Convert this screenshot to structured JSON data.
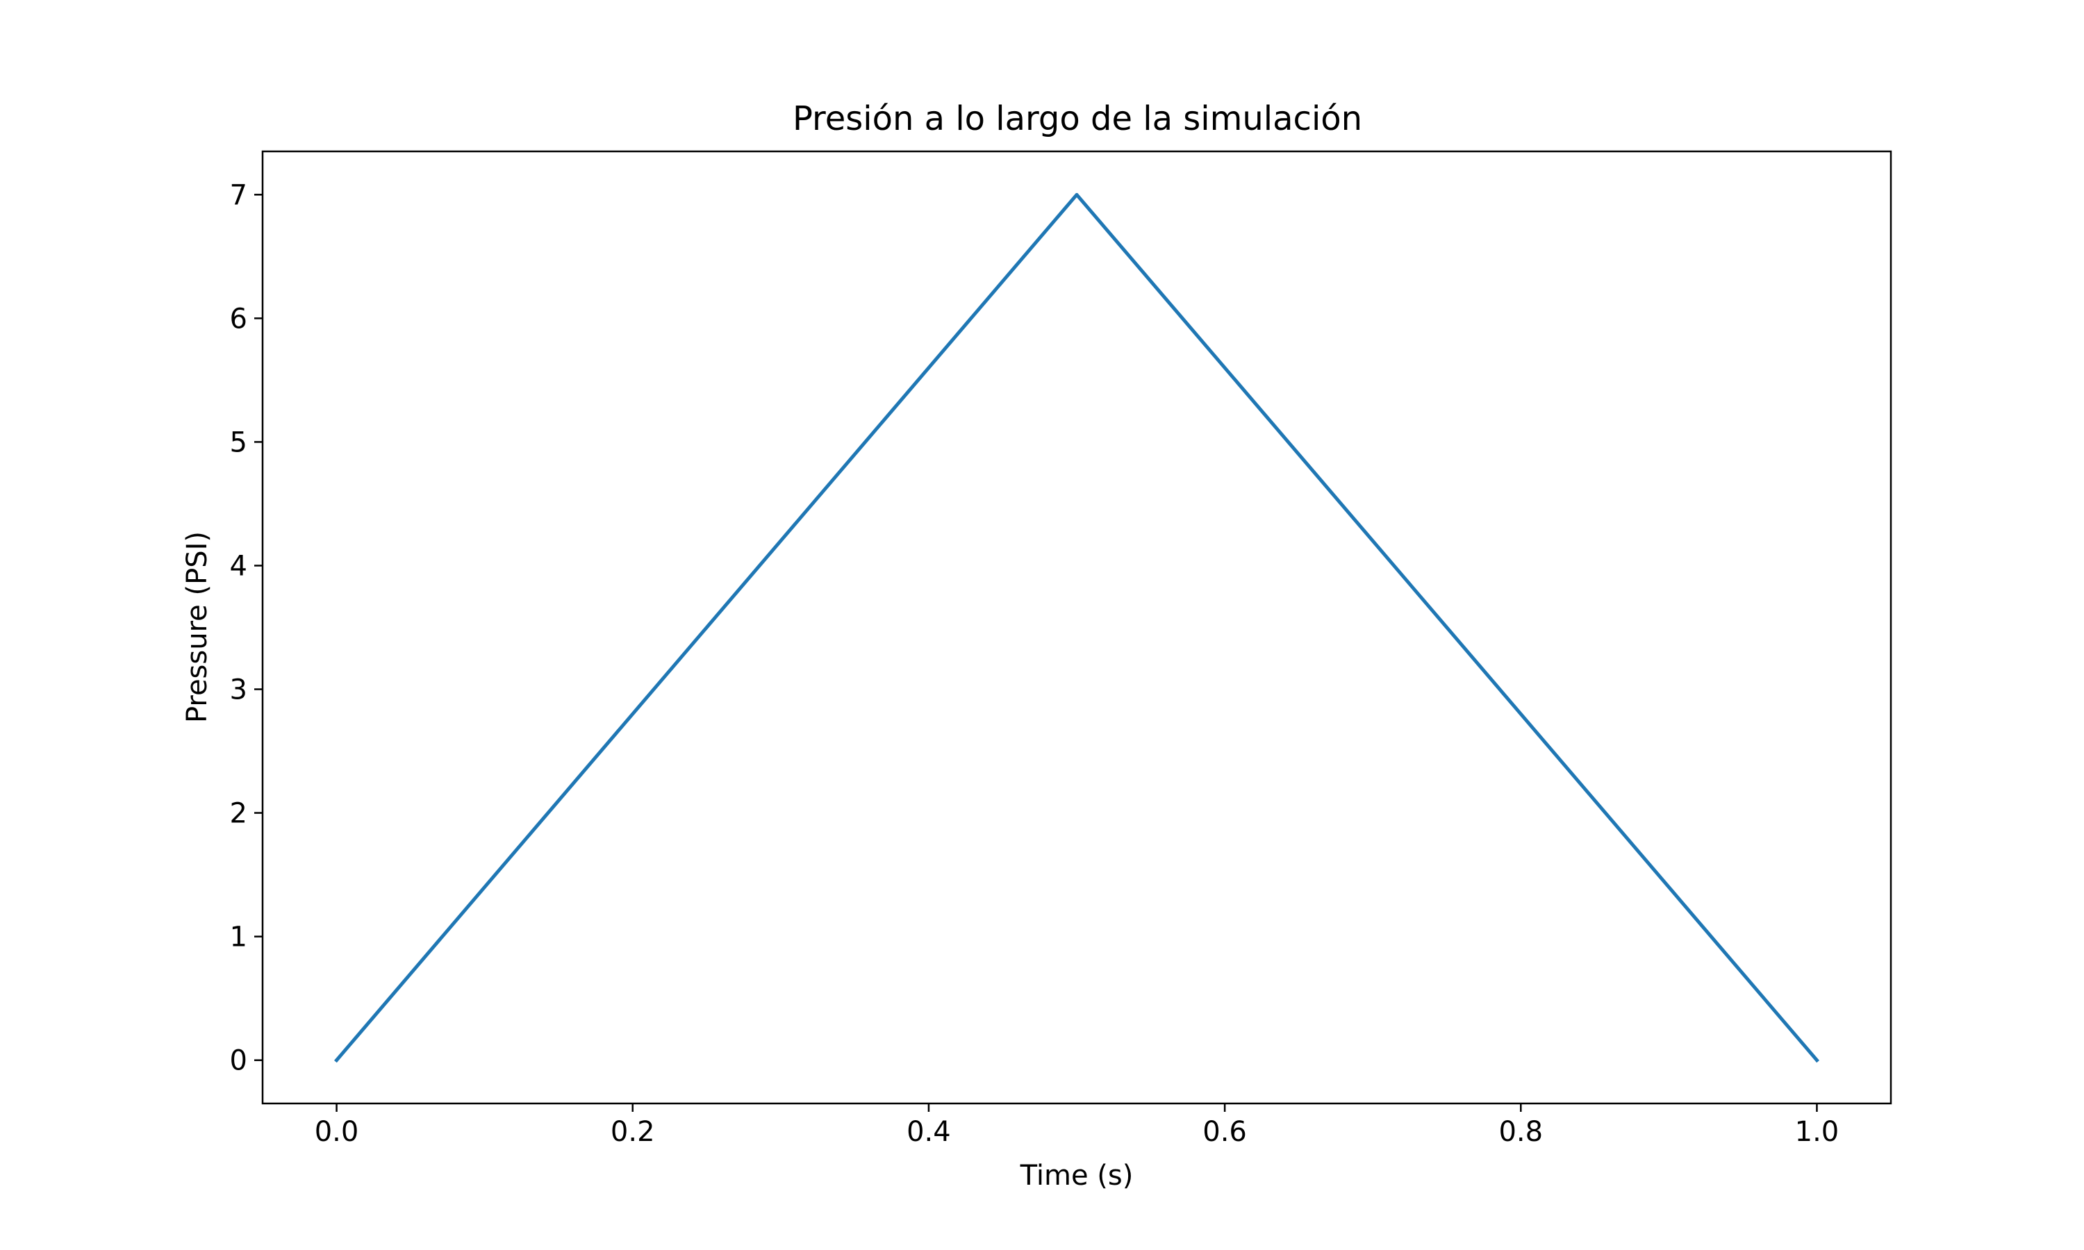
{
  "chart_data": {
    "type": "line",
    "title": "Presión a lo largo de la simulación",
    "xlabel": "Time (s)",
    "ylabel": "Pressure (PSI)",
    "xlim": [
      -0.05,
      1.05
    ],
    "ylim": [
      -0.35,
      7.35
    ],
    "x_ticks": [
      0.0,
      0.2,
      0.4,
      0.6,
      0.8,
      1.0
    ],
    "x_tick_labels": [
      "0.0",
      "0.2",
      "0.4",
      "0.6",
      "0.8",
      "1.0"
    ],
    "y_ticks": [
      0,
      1,
      2,
      3,
      4,
      5,
      6,
      7
    ],
    "y_tick_labels": [
      "0",
      "1",
      "2",
      "3",
      "4",
      "5",
      "6",
      "7"
    ],
    "grid": false,
    "series": [
      {
        "color": "#1f77b4",
        "x": [
          0.0,
          0.5,
          1.0
        ],
        "y": [
          0,
          7,
          0
        ]
      }
    ]
  }
}
